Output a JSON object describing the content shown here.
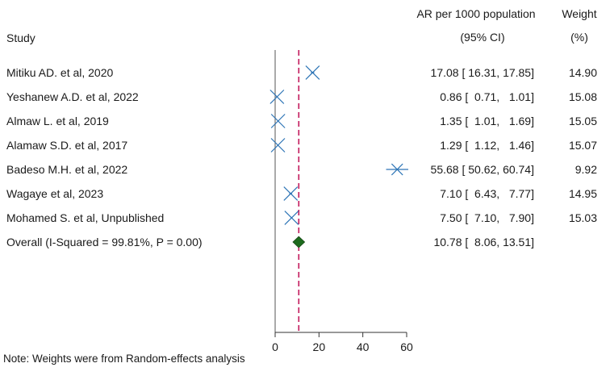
{
  "headers": {
    "study": "Study",
    "ar_line1": "AR per 1000 population",
    "ar_line2": "(95% CI)",
    "weight_line1": "Weight",
    "weight_line2": "(%)"
  },
  "note": "Note: Weights were from Random-effects analysis",
  "chart_data": {
    "type": "forest",
    "xlim": [
      0,
      60
    ],
    "x_ticks": [
      0,
      20,
      40,
      60
    ],
    "null_line": 0,
    "overall_line": 10.78,
    "studies": [
      {
        "label": "Mitiku AD. et al, 2020",
        "estimate": 17.08,
        "lower": 16.31,
        "upper": 17.85,
        "ci_text": "17.08 [ 16.31, 17.85]",
        "weight": "14.90"
      },
      {
        "label": "Yeshanew A.D. et al, 2022",
        "estimate": 0.86,
        "lower": 0.71,
        "upper": 1.01,
        "ci_text": "0.86 [  0.71,   1.01]",
        "weight": "15.08"
      },
      {
        "label": "Almaw L. et al, 2019",
        "estimate": 1.35,
        "lower": 1.01,
        "upper": 1.69,
        "ci_text": "1.35 [  1.01,   1.69]",
        "weight": "15.05"
      },
      {
        "label": "Alamaw S.D. et al, 2017",
        "estimate": 1.29,
        "lower": 1.12,
        "upper": 1.46,
        "ci_text": "1.29 [  1.12,   1.46]",
        "weight": "15.07"
      },
      {
        "label": "Badeso M.H. et al, 2022",
        "estimate": 55.68,
        "lower": 50.62,
        "upper": 60.74,
        "ci_text": "55.68 [ 50.62, 60.74]",
        "weight": "9.92"
      },
      {
        "label": "Wagaye et al, 2023",
        "estimate": 7.1,
        "lower": 6.43,
        "upper": 7.77,
        "ci_text": "7.10 [  6.43,   7.77]",
        "weight": "14.95"
      },
      {
        "label": "Mohamed S. et al, Unpublished",
        "estimate": 7.5,
        "lower": 7.1,
        "upper": 7.9,
        "ci_text": "7.50 [  7.10,   7.90]",
        "weight": "15.03"
      }
    ],
    "overall": {
      "label": "Overall (I-Squared = 99.81%, P = 0.00)",
      "estimate": 10.78,
      "lower": 8.06,
      "upper": 13.51,
      "ci_text": "10.78 [  8.06, 13.51]"
    },
    "colors": {
      "marker": "#2e75b6",
      "diamond": "#1e6b1e",
      "overall_line": "#c2185b",
      "axis": "#333333"
    }
  }
}
